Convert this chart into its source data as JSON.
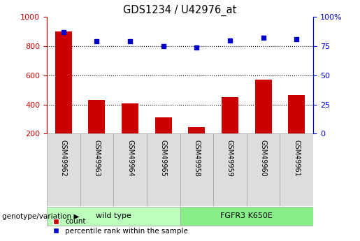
{
  "title": "GDS1234 / U42976_at",
  "categories": [
    "GSM49962",
    "GSM49963",
    "GSM49964",
    "GSM49965",
    "GSM49958",
    "GSM49959",
    "GSM49960",
    "GSM49961"
  ],
  "bar_values": [
    900,
    430,
    410,
    310,
    245,
    450,
    570,
    465
  ],
  "scatter_values": [
    87,
    79,
    79,
    75,
    74,
    80,
    82,
    81
  ],
  "bar_color": "#cc0000",
  "scatter_color": "#0000cc",
  "ylim_left": [
    200,
    1000
  ],
  "ylim_right": [
    0,
    100
  ],
  "yticks_left": [
    200,
    400,
    600,
    800,
    1000
  ],
  "yticks_right": [
    0,
    25,
    50,
    75,
    100
  ],
  "grid_values": [
    400,
    600,
    800
  ],
  "groups": [
    {
      "label": "wild type",
      "indices": [
        0,
        1,
        2,
        3
      ],
      "color": "#bbffbb"
    },
    {
      "label": "FGFR3 K650E",
      "indices": [
        4,
        5,
        6,
        7
      ],
      "color": "#88ee88"
    }
  ],
  "group_label": "genotype/variation",
  "legend_bar_label": "count",
  "legend_scatter_label": "percentile rank within the sample",
  "bar_color_legend": "#cc0000",
  "scatter_color_legend": "#0000cc",
  "left_axis_color": "#cc0000",
  "right_axis_color": "#0000cc",
  "bar_bottom": 200
}
